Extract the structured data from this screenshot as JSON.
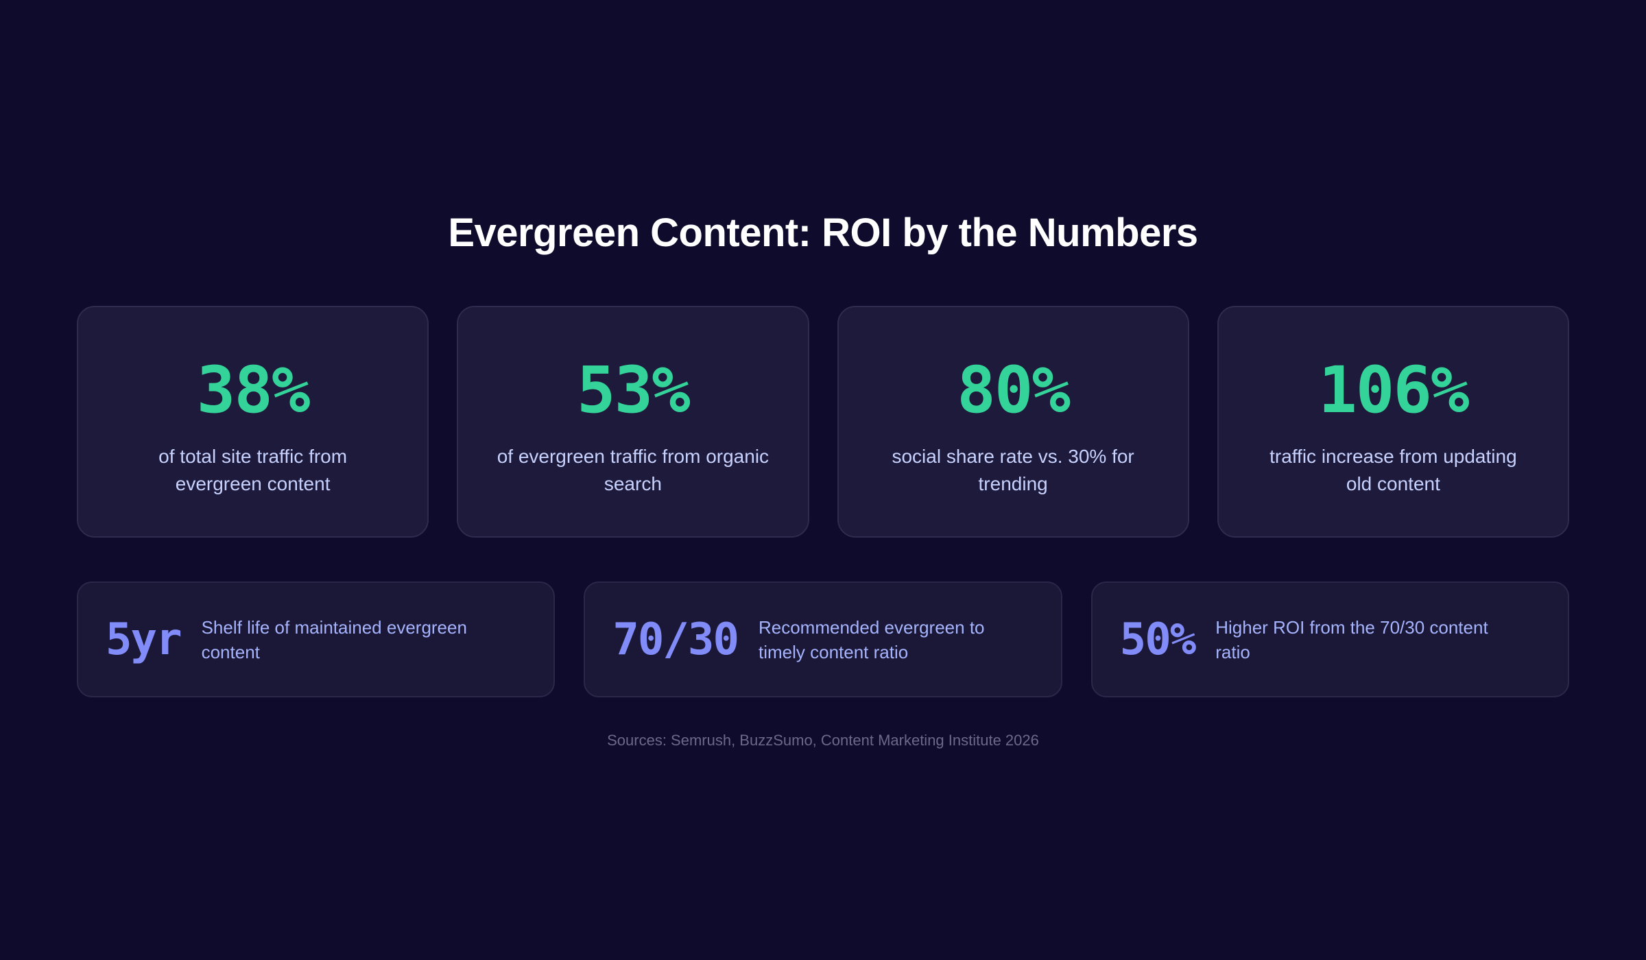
{
  "title": "Evergreen Content: ROI by the Numbers",
  "colors": {
    "background": "#0f0b2d",
    "card": "#1e1a3b",
    "primary_stat": "#34d399",
    "secondary_stat": "#818cf8",
    "primary_text": "#c7d2fe",
    "secondary_text": "#a5b4fc",
    "sources_text": "#6b6889"
  },
  "primary_stats": [
    {
      "value": "38%",
      "description": "of total site traffic from evergreen content"
    },
    {
      "value": "53%",
      "description": "of evergreen traffic from organic search"
    },
    {
      "value": "80%",
      "description": "social share rate vs. 30% for trending"
    },
    {
      "value": "106%",
      "description": "traffic increase from updating old content"
    }
  ],
  "secondary_stats": [
    {
      "value": "5yr",
      "description": "Shelf life of maintained evergreen content"
    },
    {
      "value": "70/30",
      "description": "Recommended evergreen to timely content ratio"
    },
    {
      "value": "50%",
      "description": "Higher ROI from the 70/30 content ratio"
    }
  ],
  "sources": "Sources: Semrush, BuzzSumo, Content Marketing Institute 2026"
}
